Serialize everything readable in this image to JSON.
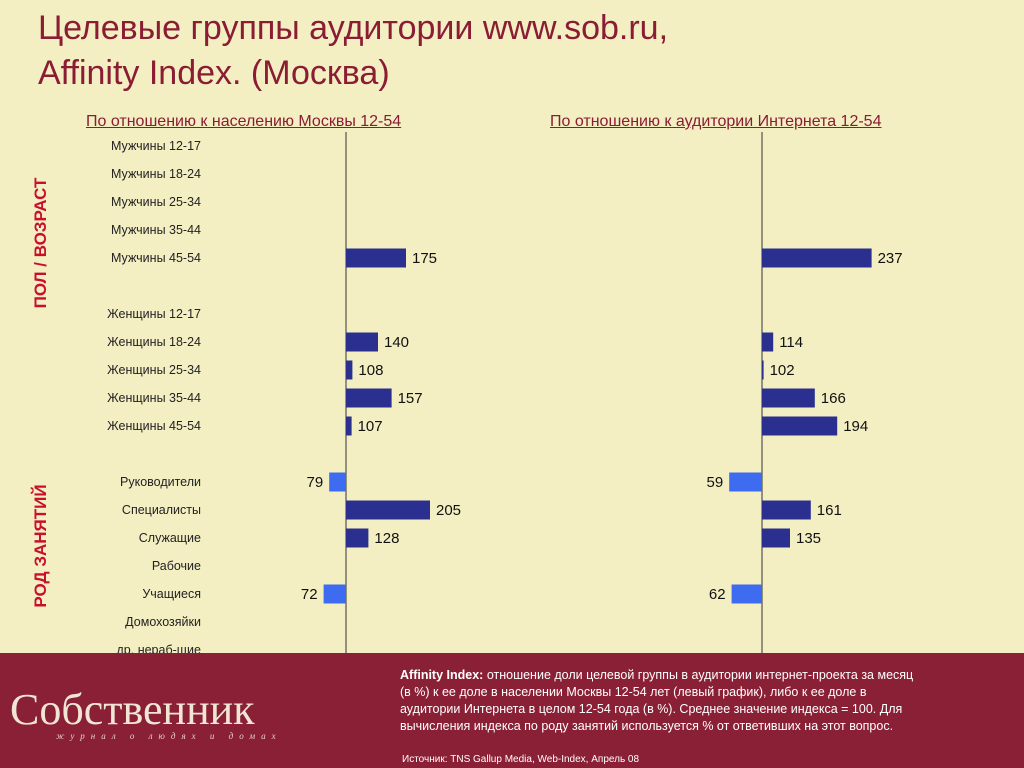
{
  "title_line1": "Целевые группы аудитории www.sob.ru,",
  "title_line2": "Affinity Index. (Москва)",
  "side_labels": {
    "gender_age": "ПОЛ / ВОЗРАСТ",
    "occupation": "РОД ЗАНЯТИЙ"
  },
  "colors": {
    "bar_above": "#2b2f8f",
    "bar_below": "#3d6cf0",
    "title": "#8a1c33",
    "footer": "#8a2035"
  },
  "chart_data": {
    "type": "bar",
    "orientation": "horizontal",
    "baseline": 100,
    "categories": [
      "Мужчины 12-17",
      "Мужчины 18-24",
      "Мужчины 25-34",
      "Мужчины 35-44",
      "Мужчины 45-54",
      "Женщины 12-17",
      "Женщины 18-24",
      "Женщины 25-34",
      "Женщины 35-44",
      "Женщины 45-54",
      "Руководители",
      "Специалисты",
      "Служащие",
      "Рабочие",
      "Учащиеся",
      "Домохозяйки",
      "др. нераб-щие"
    ],
    "series": [
      {
        "name": "По отношению к населению Москвы 12-54",
        "values": [
          null,
          null,
          null,
          null,
          175,
          null,
          140,
          108,
          157,
          107,
          79,
          205,
          128,
          null,
          72,
          null,
          null
        ]
      },
      {
        "name": "По отношению к аудитории Интернета 12-54",
        "values": [
          null,
          null,
          null,
          null,
          237,
          null,
          114,
          102,
          166,
          194,
          59,
          161,
          135,
          null,
          62,
          null,
          null
        ]
      }
    ]
  },
  "footer": {
    "logo": "Собственник",
    "logo_sub": "журнал о людях и домах",
    "definition_term": "Affinity Index:",
    "definition_text": " отношение доли целевой группы в аудитории интернет-проекта за месяц (в %) к ее доле в населении Москвы 12-54 лет  (левый график), либо к ее доле в аудитории Интернета в целом 12-54 года (в %). Среднее значение индекса = 100. Для вычисления индекса по роду занятий используется % от ответивших на этот вопрос.",
    "source": "Источник: TNS Gallup Media, Web-Index, Апрель 08"
  }
}
